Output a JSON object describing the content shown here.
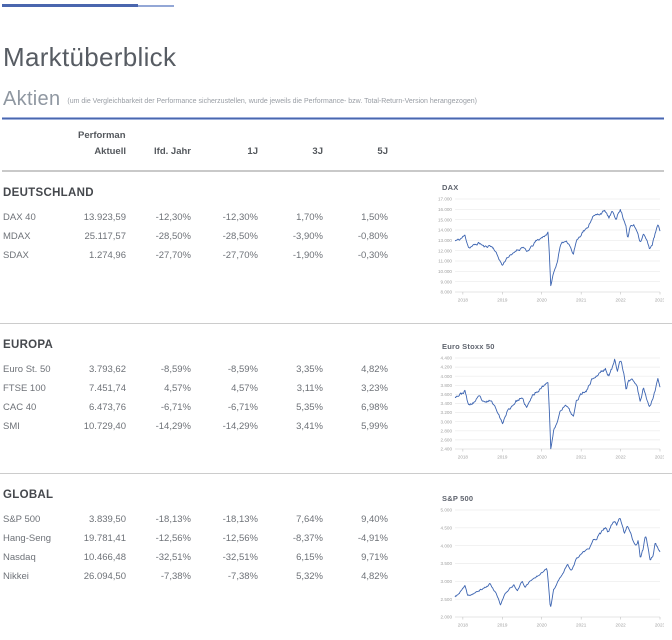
{
  "page": {
    "title": "Marktüberblick",
    "section_title": "Aktien",
    "section_note": "(um die Vergleichbarkeit der Performance sicherzustellen, wurde jeweils die Performance- bzw. Total-Return-Version herangezogen)"
  },
  "table": {
    "header_group": "Performance",
    "columns": [
      "Aktuell",
      "lfd. Jahr",
      "1J",
      "3J",
      "5J"
    ],
    "sections": [
      {
        "name": "DEUTSCHLAND",
        "rows": [
          {
            "label": "DAX 40",
            "values": [
              "13.923,59",
              "-12,30%",
              "-12,30%",
              "1,70%",
              "1,50%"
            ]
          },
          {
            "label": "MDAX",
            "values": [
              "25.117,57",
              "-28,50%",
              "-28,50%",
              "-3,90%",
              "-0,80%"
            ]
          },
          {
            "label": "SDAX",
            "values": [
              "1.274,96",
              "-27,70%",
              "-27,70%",
              "-1,90%",
              "-0,30%"
            ]
          }
        ]
      },
      {
        "name": "EUROPA",
        "rows": [
          {
            "label": "Euro St. 50",
            "values": [
              "3.793,62",
              "-8,59%",
              "-8,59%",
              "3,35%",
              "4,82%"
            ]
          },
          {
            "label": "FTSE 100",
            "values": [
              "7.451,74",
              "4,57%",
              "4,57%",
              "3,11%",
              "3,23%"
            ]
          },
          {
            "label": "CAC 40",
            "values": [
              "6.473,76",
              "-6,71%",
              "-6,71%",
              "5,35%",
              "6,98%"
            ]
          },
          {
            "label": "SMI",
            "values": [
              "10.729,40",
              "-14,29%",
              "-14,29%",
              "3,41%",
              "5,99%"
            ]
          }
        ]
      },
      {
        "name": "GLOBAL",
        "rows": [
          {
            "label": "S&P 500",
            "values": [
              "3.839,50",
              "-18,13%",
              "-18,13%",
              "7,64%",
              "9,40%"
            ]
          },
          {
            "label": "Hang-Seng",
            "values": [
              "19.781,41",
              "-12,56%",
              "-12,56%",
              "-8,37%",
              "-4,91%"
            ]
          },
          {
            "label": "Nasdaq",
            "values": [
              "10.466,48",
              "-32,51%",
              "-32,51%",
              "6,15%",
              "9,71%"
            ]
          },
          {
            "label": "Nikkei",
            "values": [
              "26.094,50",
              "-7,38%",
              "-7,38%",
              "5,32%",
              "4,82%"
            ]
          }
        ]
      }
    ]
  },
  "colors": {
    "accent_blue": "#4a67ae",
    "chart_line": "#3c64b1",
    "gridline": "#ebebeb",
    "axis_label": "#a2a2a2",
    "separator": "#cccccc"
  },
  "chart_data": [
    {
      "type": "line",
      "title": "DAX",
      "x": "year (2018-2023)",
      "x_ticks": [
        "2018",
        "2019",
        "2020",
        "2021",
        "2022",
        "2023"
      ],
      "x_domain": [
        2017.8,
        2023.0
      ],
      "ylim": [
        8000,
        17000
      ],
      "ytick_step": 1000,
      "grid": true,
      "legend": "none",
      "anchors": [
        [
          2017.8,
          12950
        ],
        [
          2017.92,
          13080
        ],
        [
          2018.05,
          13470
        ],
        [
          2018.15,
          12280
        ],
        [
          2018.3,
          12550
        ],
        [
          2018.42,
          12750
        ],
        [
          2018.55,
          12350
        ],
        [
          2018.68,
          12500
        ],
        [
          2018.78,
          12250
        ],
        [
          2018.9,
          11350
        ],
        [
          2019.0,
          10550
        ],
        [
          2019.12,
          11350
        ],
        [
          2019.25,
          11600
        ],
        [
          2019.35,
          12050
        ],
        [
          2019.45,
          12150
        ],
        [
          2019.52,
          12400
        ],
        [
          2019.62,
          11850
        ],
        [
          2019.75,
          12400
        ],
        [
          2019.85,
          12900
        ],
        [
          2020.0,
          13250
        ],
        [
          2020.1,
          13550
        ],
        [
          2020.16,
          13700
        ],
        [
          2020.19,
          12000
        ],
        [
          2020.23,
          8500
        ],
        [
          2020.3,
          9900
        ],
        [
          2020.38,
          10700
        ],
        [
          2020.47,
          12400
        ],
        [
          2020.55,
          12850
        ],
        [
          2020.63,
          12950
        ],
        [
          2020.7,
          12650
        ],
        [
          2020.8,
          11600
        ],
        [
          2020.88,
          13000
        ],
        [
          2020.95,
          13300
        ],
        [
          2021.05,
          13900
        ],
        [
          2021.15,
          14100
        ],
        [
          2021.28,
          15250
        ],
        [
          2021.4,
          15450
        ],
        [
          2021.5,
          15650
        ],
        [
          2021.62,
          15800
        ],
        [
          2021.7,
          15150
        ],
        [
          2021.8,
          15750
        ],
        [
          2021.88,
          15150
        ],
        [
          2021.95,
          15650
        ],
        [
          2022.0,
          15950
        ],
        [
          2022.08,
          15050
        ],
        [
          2022.14,
          14450
        ],
        [
          2022.18,
          13100
        ],
        [
          2022.25,
          14400
        ],
        [
          2022.33,
          14450
        ],
        [
          2022.42,
          13950
        ],
        [
          2022.5,
          12850
        ],
        [
          2022.58,
          13600
        ],
        [
          2022.65,
          13100
        ],
        [
          2022.73,
          12250
        ],
        [
          2022.8,
          12550
        ],
        [
          2022.88,
          13650
        ],
        [
          2022.94,
          14450
        ],
        [
          2023.0,
          13920
        ]
      ]
    },
    {
      "type": "line",
      "title": "Euro Stoxx 50",
      "x": "year (2018-2023)",
      "x_ticks": [
        "2018",
        "2019",
        "2020",
        "2021",
        "2022",
        "2023"
      ],
      "x_domain": [
        2017.8,
        2023.0
      ],
      "ylim": [
        2400,
        4400
      ],
      "ytick_step": 200,
      "grid": true,
      "legend": "none",
      "anchors": [
        [
          2017.8,
          3560
        ],
        [
          2017.92,
          3590
        ],
        [
          2018.05,
          3670
        ],
        [
          2018.15,
          3350
        ],
        [
          2018.3,
          3440
        ],
        [
          2018.42,
          3550
        ],
        [
          2018.55,
          3400
        ],
        [
          2018.68,
          3470
        ],
        [
          2018.78,
          3380
        ],
        [
          2018.9,
          3200
        ],
        [
          2019.0,
          2950
        ],
        [
          2019.12,
          3220
        ],
        [
          2019.25,
          3350
        ],
        [
          2019.35,
          3450
        ],
        [
          2019.45,
          3500
        ],
        [
          2019.52,
          3480
        ],
        [
          2019.62,
          3300
        ],
        [
          2019.75,
          3550
        ],
        [
          2019.85,
          3650
        ],
        [
          2020.0,
          3750
        ],
        [
          2020.1,
          3850
        ],
        [
          2020.16,
          3860
        ],
        [
          2020.19,
          3350
        ],
        [
          2020.23,
          2390
        ],
        [
          2020.3,
          2800
        ],
        [
          2020.38,
          2950
        ],
        [
          2020.47,
          3250
        ],
        [
          2020.55,
          3320
        ],
        [
          2020.63,
          3350
        ],
        [
          2020.7,
          3250
        ],
        [
          2020.8,
          3100
        ],
        [
          2020.88,
          3450
        ],
        [
          2020.95,
          3550
        ],
        [
          2021.05,
          3650
        ],
        [
          2021.15,
          3700
        ],
        [
          2021.28,
          3950
        ],
        [
          2021.4,
          4000
        ],
        [
          2021.5,
          4100
        ],
        [
          2021.62,
          4150
        ],
        [
          2021.7,
          4000
        ],
        [
          2021.8,
          4200
        ],
        [
          2021.85,
          4400
        ],
        [
          2021.92,
          4150
        ],
        [
          2022.0,
          4350
        ],
        [
          2022.08,
          4050
        ],
        [
          2022.14,
          3700
        ],
        [
          2022.2,
          3900
        ],
        [
          2022.3,
          3950
        ],
        [
          2022.42,
          3750
        ],
        [
          2022.5,
          3450
        ],
        [
          2022.58,
          3750
        ],
        [
          2022.65,
          3550
        ],
        [
          2022.73,
          3350
        ],
        [
          2022.8,
          3450
        ],
        [
          2022.88,
          3700
        ],
        [
          2022.94,
          3950
        ],
        [
          2023.0,
          3790
        ]
      ]
    },
    {
      "type": "line",
      "title": "S&P 500",
      "x": "year (2018-2023)",
      "x_ticks": [
        "2018",
        "2019",
        "2020",
        "2021",
        "2022",
        "2023"
      ],
      "x_domain": [
        2017.8,
        2023.0
      ],
      "ylim": [
        2000,
        5000
      ],
      "ytick_step": 500,
      "grid": true,
      "legend": "none",
      "anchors": [
        [
          2017.8,
          2560
        ],
        [
          2017.92,
          2680
        ],
        [
          2018.05,
          2870
        ],
        [
          2018.12,
          2600
        ],
        [
          2018.25,
          2640
        ],
        [
          2018.4,
          2730
        ],
        [
          2018.55,
          2820
        ],
        [
          2018.7,
          2930
        ],
        [
          2018.78,
          2750
        ],
        [
          2018.85,
          2650
        ],
        [
          2018.95,
          2350
        ],
        [
          2019.05,
          2600
        ],
        [
          2019.18,
          2800
        ],
        [
          2019.3,
          2900
        ],
        [
          2019.38,
          2750
        ],
        [
          2019.5,
          2990
        ],
        [
          2019.58,
          2850
        ],
        [
          2019.7,
          3000
        ],
        [
          2019.85,
          3120
        ],
        [
          2019.97,
          3230
        ],
        [
          2020.08,
          3330
        ],
        [
          2020.13,
          3390
        ],
        [
          2020.17,
          2950
        ],
        [
          2020.22,
          2240
        ],
        [
          2020.3,
          2750
        ],
        [
          2020.38,
          2900
        ],
        [
          2020.45,
          3080
        ],
        [
          2020.55,
          3230
        ],
        [
          2020.65,
          3500
        ],
        [
          2020.72,
          3300
        ],
        [
          2020.8,
          3400
        ],
        [
          2020.88,
          3620
        ],
        [
          2020.97,
          3730
        ],
        [
          2021.05,
          3800
        ],
        [
          2021.12,
          3900
        ],
        [
          2021.2,
          3880
        ],
        [
          2021.3,
          4150
        ],
        [
          2021.4,
          4220
        ],
        [
          2021.5,
          4350
        ],
        [
          2021.62,
          4520
        ],
        [
          2021.68,
          4350
        ],
        [
          2021.78,
          4600
        ],
        [
          2021.85,
          4700
        ],
        [
          2021.9,
          4600
        ],
        [
          2021.97,
          4790
        ],
        [
          2022.02,
          4680
        ],
        [
          2022.1,
          4350
        ],
        [
          2022.17,
          4580
        ],
        [
          2022.25,
          4350
        ],
        [
          2022.32,
          4150
        ],
        [
          2022.38,
          4000
        ],
        [
          2022.45,
          4150
        ],
        [
          2022.5,
          3670
        ],
        [
          2022.57,
          3900
        ],
        [
          2022.63,
          4300
        ],
        [
          2022.7,
          3950
        ],
        [
          2022.75,
          3590
        ],
        [
          2022.83,
          3750
        ],
        [
          2022.88,
          4080
        ],
        [
          2022.94,
          3940
        ],
        [
          2023.0,
          3840
        ]
      ]
    }
  ]
}
